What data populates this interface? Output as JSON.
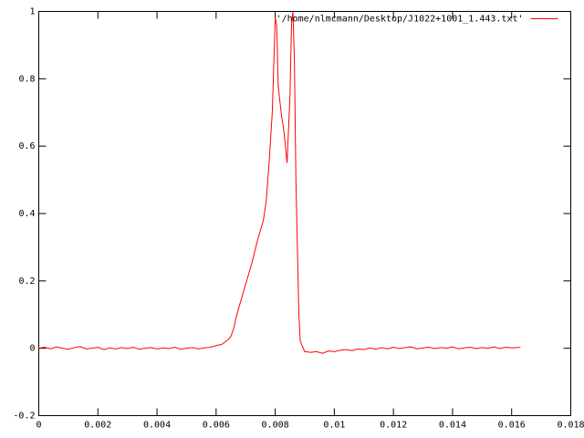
{
  "chart_data": {
    "type": "line",
    "x": [
      0,
      0.0002,
      0.0004,
      0.0006,
      0.0008,
      0.001,
      0.0012,
      0.0014,
      0.0016,
      0.0018,
      0.002,
      0.0022,
      0.0024,
      0.0026,
      0.0028,
      0.003,
      0.0032,
      0.0034,
      0.0036,
      0.0038,
      0.004,
      0.0042,
      0.0044,
      0.0046,
      0.0048,
      0.005,
      0.0052,
      0.0054,
      0.0056,
      0.0058,
      0.006,
      0.0062,
      0.0064,
      0.0065,
      0.0066,
      0.0067,
      0.0068,
      0.007,
      0.0072,
      0.0074,
      0.0076,
      0.0077,
      0.0078,
      0.0079,
      0.008,
      0.00805,
      0.0081,
      0.0082,
      0.0083,
      0.0084,
      0.0085,
      0.00855,
      0.0086,
      0.00865,
      0.0087,
      0.0088,
      0.00885,
      0.009,
      0.0092,
      0.0094,
      0.0096,
      0.0098,
      0.01,
      0.0102,
      0.0104,
      0.0106,
      0.0108,
      0.011,
      0.0112,
      0.0114,
      0.0116,
      0.0118,
      0.012,
      0.0122,
      0.0124,
      0.0126,
      0.0128,
      0.013,
      0.0132,
      0.0134,
      0.0136,
      0.0138,
      0.014,
      0.0142,
      0.0144,
      0.0146,
      0.0148,
      0.015,
      0.0152,
      0.0154,
      0.0156,
      0.0158,
      0.016,
      0.0162,
      0.0163
    ],
    "series": [
      {
        "name": "'/home/nlmcmann/Desktop/J1022+1001_1.443.txt'",
        "color": "#ff0000",
        "values": [
          0,
          0.003,
          -0.002,
          0.004,
          0,
          -0.003,
          0.002,
          0.005,
          -0.002,
          0,
          0.003,
          -0.004,
          0.001,
          -0.002,
          0.002,
          -0.001,
          0.003,
          -0.003,
          0,
          0.002,
          -0.002,
          0.001,
          -0.001,
          0.003,
          -0.003,
          0,
          0.002,
          -0.002,
          0.001,
          0.003,
          0.008,
          0.012,
          0.025,
          0.035,
          0.06,
          0.1,
          0.13,
          0.19,
          0.25,
          0.32,
          0.38,
          0.44,
          0.56,
          0.7,
          0.98,
          0.96,
          0.78,
          0.7,
          0.64,
          0.55,
          0.75,
          0.96,
          1,
          0.85,
          0.5,
          0.1,
          0.02,
          -0.01,
          -0.012,
          -0.01,
          -0.015,
          -0.008,
          -0.01,
          -0.006,
          -0.004,
          -0.007,
          -0.002,
          -0.004,
          0.001,
          -0.003,
          0.002,
          -0.002,
          0.003,
          -0.001,
          0.002,
          0.004,
          -0.002,
          0.001,
          0.003,
          -0.001,
          0.002,
          0,
          0.004,
          -0.002,
          0.001,
          0.003,
          -0.001,
          0.002,
          0,
          0.004,
          -0.001,
          0.003,
          0.001,
          0.002,
          0.003
        ]
      }
    ],
    "xlim": [
      0,
      0.018
    ],
    "xticks": [
      0,
      0.002,
      0.004,
      0.006,
      0.008,
      0.01,
      0.012,
      0.014,
      0.016,
      0.018
    ],
    "ylim": [
      -0.2,
      1
    ],
    "yticks": [
      -0.2,
      0,
      0.2,
      0.4,
      0.6,
      0.8,
      1
    ],
    "legend": "top-right"
  }
}
